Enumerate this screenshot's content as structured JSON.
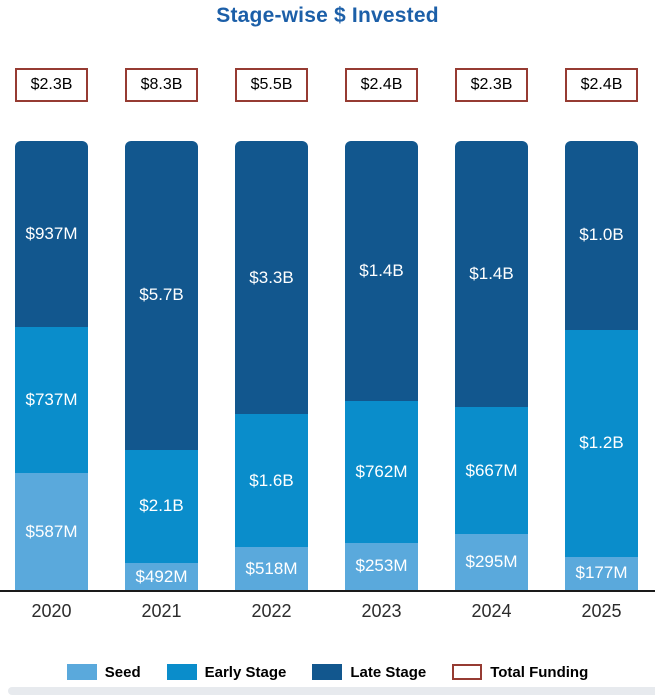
{
  "title": "Stage-wise $ Invested",
  "colors": {
    "title": "#1C5FA8",
    "seed": "#5AA9DC",
    "early_stage": "#0A8DCB",
    "late_stage": "#12578E",
    "total_funding_border": "#963B32",
    "axis_line": "#1a1a1a",
    "bar_label_text": "#ffffff",
    "bottom_strip": "#e7eaee"
  },
  "chart_data": {
    "type": "bar",
    "subtype": "100-percent-stacked-column",
    "title": "Stage-wise $ Invested",
    "xlabel": "",
    "ylabel": "",
    "grid": false,
    "legend_position": "bottom",
    "categories": [
      "2020",
      "2021",
      "2022",
      "2023",
      "2024",
      "2025"
    ],
    "totals_labels": [
      "$2.3B",
      "$8.3B",
      "$5.5B",
      "$2.4B",
      "$2.3B",
      "$2.4B"
    ],
    "series": [
      {
        "name": "Seed",
        "values_millions": [
          587,
          492,
          518,
          253,
          295,
          177
        ],
        "labels": [
          "$587M",
          "$492M",
          "$518M",
          "$253M",
          "$295M",
          "$177M"
        ]
      },
      {
        "name": "Early Stage",
        "values_millions": [
          737,
          2100,
          1600,
          762,
          667,
          1200
        ],
        "labels": [
          "$737M",
          "$2.1B",
          "$1.6B",
          "$762M",
          "$667M",
          "$1.2B"
        ]
      },
      {
        "name": "Late Stage",
        "values_millions": [
          937,
          5700,
          3300,
          1400,
          1400,
          1000
        ],
        "labels": [
          "$937M",
          "$5.7B",
          "$3.3B",
          "$1.4B",
          "$1.4B",
          "$1.0B"
        ]
      }
    ],
    "legend": [
      "Seed",
      "Early Stage",
      "Late Stage",
      "Total Funding"
    ]
  },
  "layout_note_values_are_percent_of_column_total": true
}
